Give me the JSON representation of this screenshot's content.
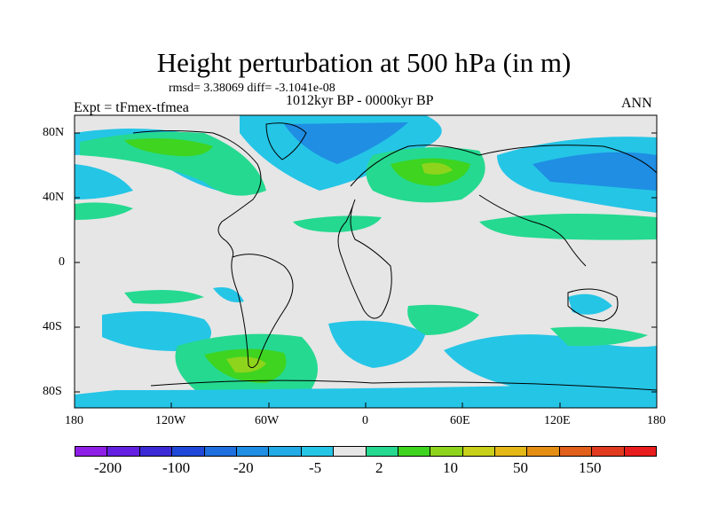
{
  "title": "Height perturbation at 500 hPa (in m)",
  "stats": "rmsd= 3.38069 diff= -3.1041e-08",
  "period": "1012kyr BP - 0000kyr BP",
  "expt": "Expt = tFmex-tfmea",
  "season": "ANN",
  "lat_labels": [
    "80N",
    "40N",
    "0",
    "40S",
    "80S"
  ],
  "lon_labels": [
    "180",
    "120W",
    "60W",
    "0",
    "60E",
    "120E",
    "180"
  ],
  "colorbar": {
    "colors": [
      "#8f1fe6",
      "#6420e0",
      "#3b2ad6",
      "#2048d8",
      "#1f6fdf",
      "#1f8ee3",
      "#22abe4",
      "#25c5e6",
      "#e6e6e6",
      "#25d990",
      "#3ed420",
      "#8ed41c",
      "#c8d01a",
      "#e3b817",
      "#e58e14",
      "#e0601c",
      "#e03a1f",
      "#e81d1d"
    ],
    "labels": [
      "-200",
      "-100",
      "-20",
      "-5",
      "2",
      "10",
      "50",
      "150"
    ]
  }
}
